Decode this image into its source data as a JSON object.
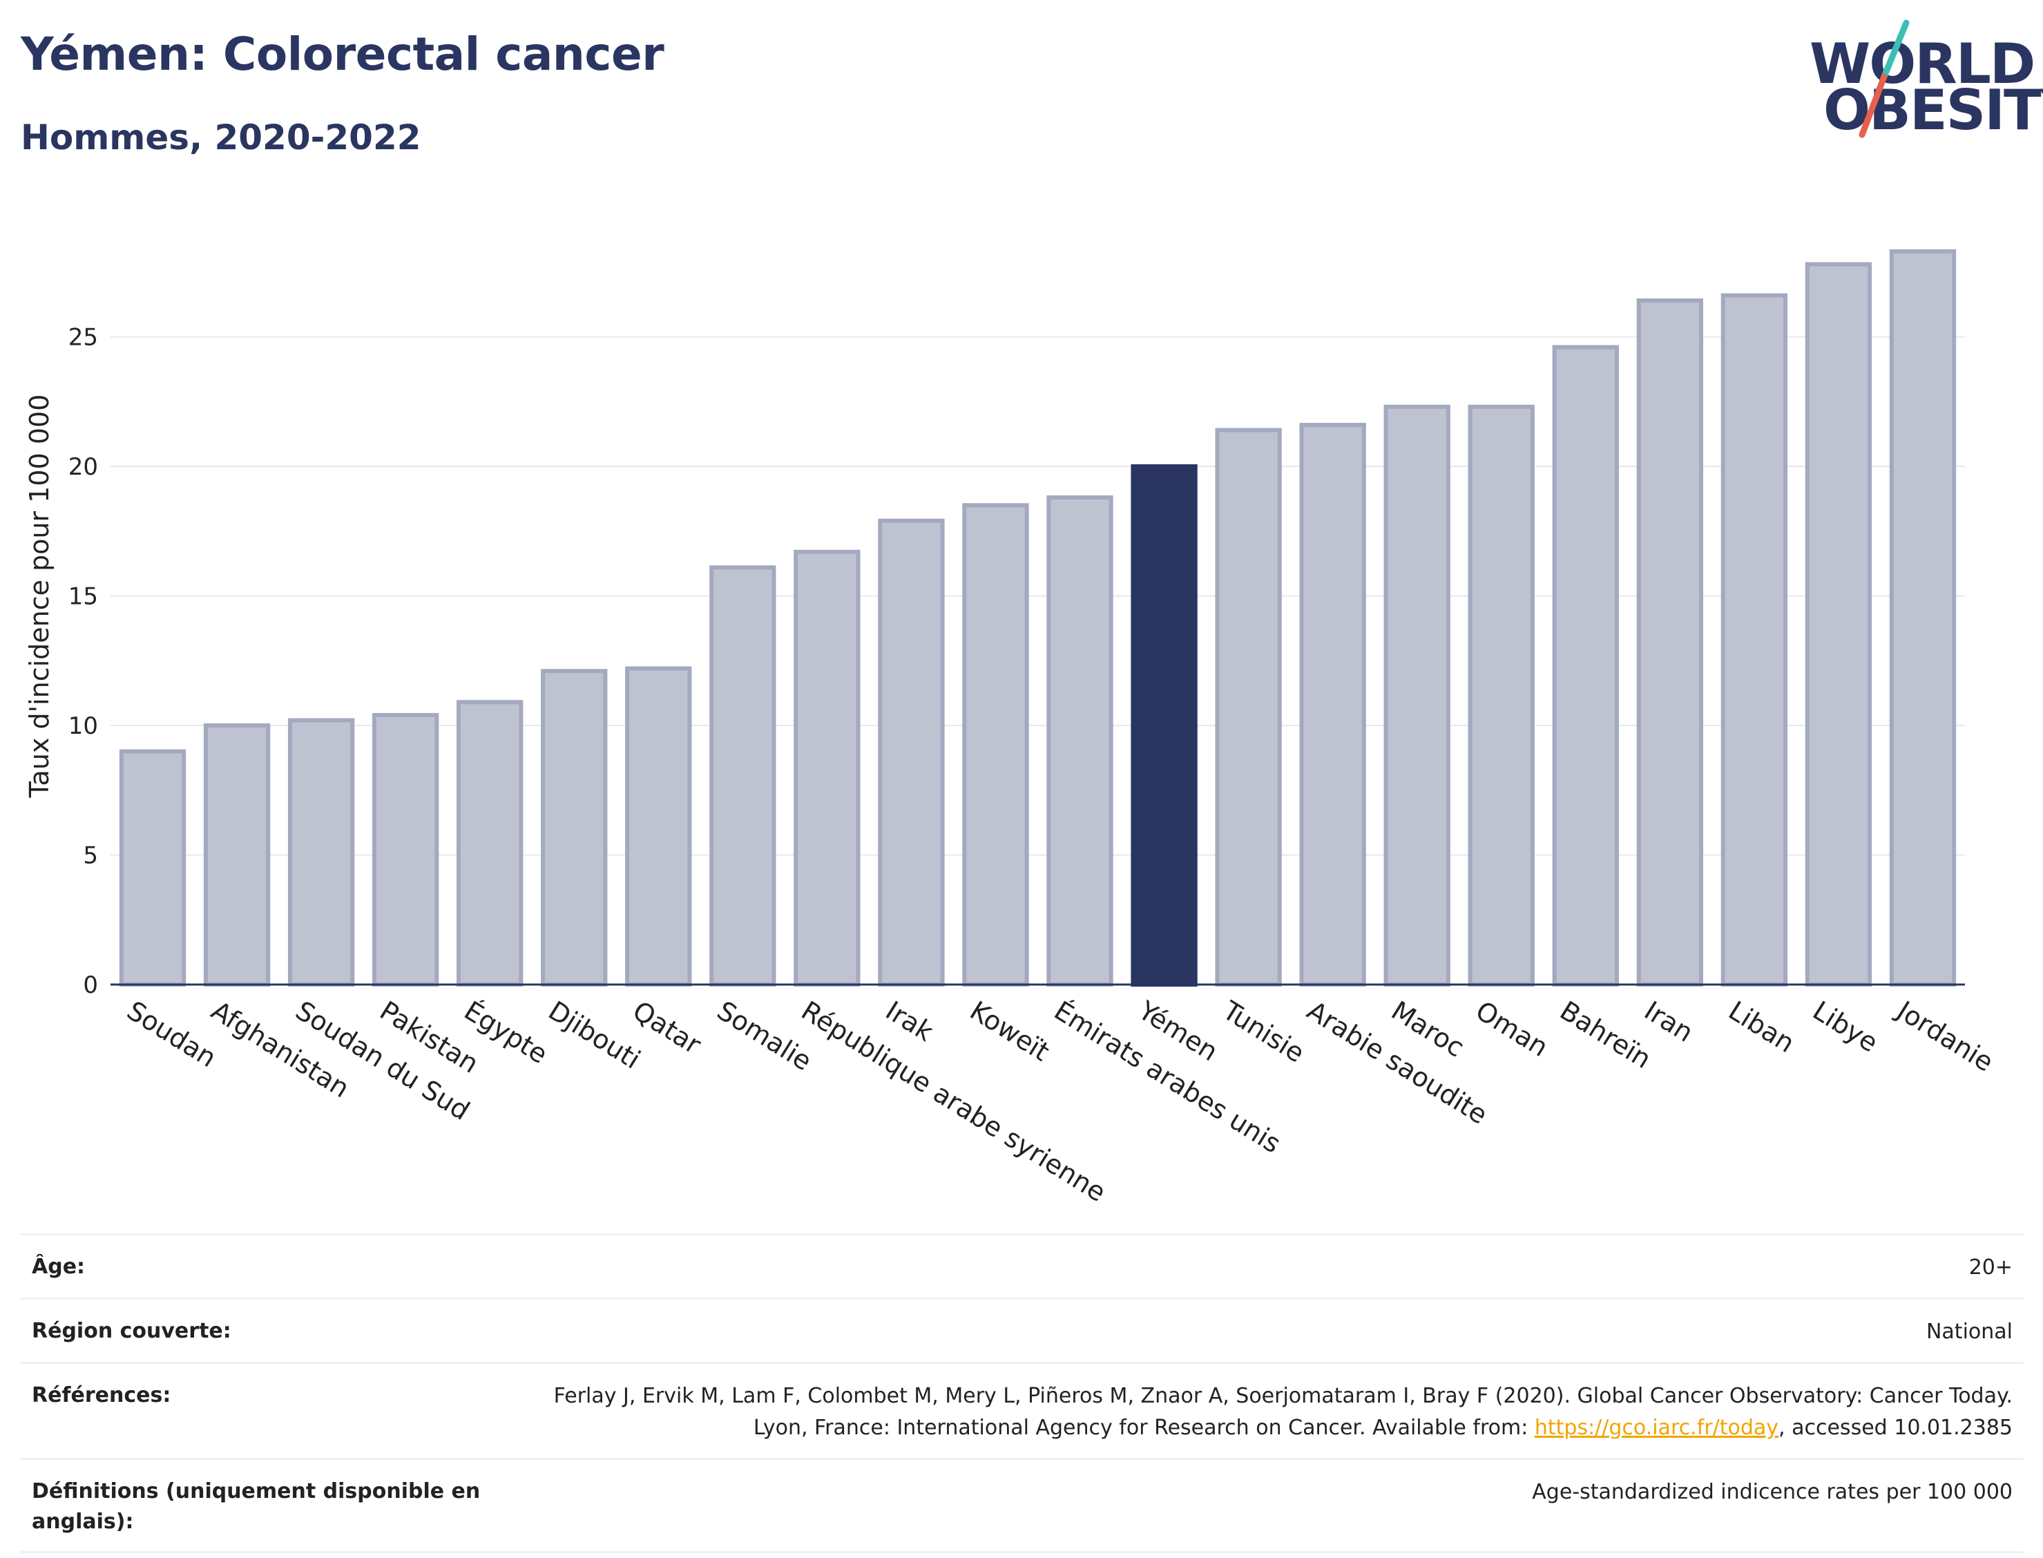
{
  "header": {
    "title": "Yémen: Colorectal cancer",
    "subtitle": "Hommes, 2020-2022"
  },
  "logo": {
    "line1": "WORLD",
    "line2": "OBESITY",
    "colors": {
      "text": "#2a3561",
      "slash_top": "#3bbfb5",
      "slash_bottom": "#e8604c"
    }
  },
  "chart_data": {
    "type": "bar",
    "title": "",
    "ylabel": "Taux d'incidence pour 100 000",
    "xlabel": "",
    "ylim": [
      0,
      30
    ],
    "yticks": [
      0,
      5,
      10,
      15,
      20,
      25
    ],
    "grid": true,
    "highlight": "Yémen",
    "colors": {
      "bar": "#bfc3d1",
      "bar_edge": "#a3a9bf",
      "highlight": "#2a3561",
      "grid": "#e6e8ee",
      "axis": "#2a3561"
    },
    "categories": [
      "Soudan",
      "Afghanistan",
      "Soudan du Sud",
      "Pakistan",
      "Égypte",
      "Djibouti",
      "Qatar",
      "Somalie",
      "République arabe syrienne",
      "Irak",
      "Koweït",
      "Émirats arabes unis",
      "Yémen",
      "Tunisie",
      "Arabie saoudite",
      "Maroc",
      "Oman",
      "Bahreïn",
      "Iran",
      "Liban",
      "Libye",
      "Jordanie"
    ],
    "values": [
      9.0,
      10.0,
      10.2,
      10.4,
      10.9,
      12.1,
      12.2,
      16.1,
      16.7,
      17.9,
      18.5,
      18.8,
      20.0,
      21.4,
      21.6,
      22.3,
      22.3,
      24.6,
      26.4,
      26.6,
      27.8,
      28.3
    ]
  },
  "meta": {
    "rows": [
      {
        "label": "Âge:",
        "value": "20+"
      },
      {
        "label": "Région couverte:",
        "value": "National"
      },
      {
        "label": "Références:",
        "value_pre": "Ferlay J, Ervik M, Lam F, Colombet M, Mery L, Piñeros M, Znaor A, Soerjomataram I, Bray F (2020). Global Cancer Observatory: Cancer Today. Lyon, France: International Agency for Research on Cancer. Available from: ",
        "link": "https://gco.iarc.fr/today",
        "value_post": ", accessed 10.01.2385"
      },
      {
        "label": "Définitions (uniquement disponible en anglais):",
        "value": "Age-standardized indicence rates per 100 000"
      }
    ]
  }
}
